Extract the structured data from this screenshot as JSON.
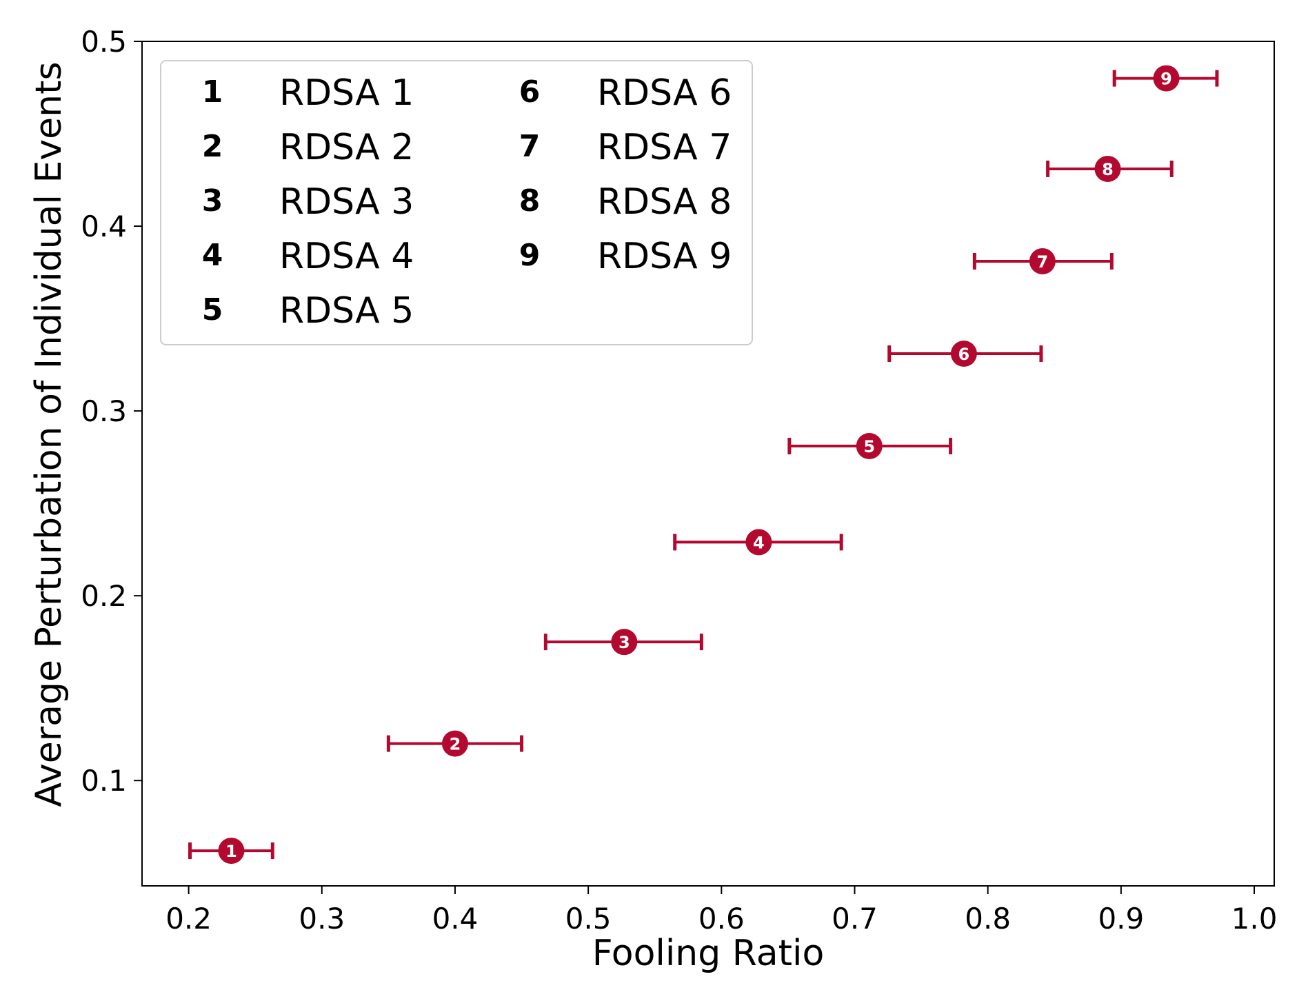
{
  "chart_data": {
    "type": "scatter",
    "title": "",
    "xlabel": "Fooling Ratio",
    "ylabel": "Average Perturbation of Individual Events",
    "xlim": [
      0.165,
      1.015
    ],
    "ylim": [
      0.043,
      0.5
    ],
    "xticks": [
      "0.2",
      "0.3",
      "0.4",
      "0.5",
      "0.6",
      "0.7",
      "0.8",
      "0.9",
      "1.0"
    ],
    "yticks": [
      "0.1",
      "0.2",
      "0.3",
      "0.4",
      "0.5"
    ],
    "grid": false,
    "legend_position": "top-left",
    "color": "#b3092f",
    "points": [
      {
        "id": "1",
        "name": "RDSA 1",
        "x": 0.232,
        "y": 0.062,
        "xerr_low": 0.201,
        "xerr_high": 0.263
      },
      {
        "id": "2",
        "name": "RDSA 2",
        "x": 0.4,
        "y": 0.12,
        "xerr_low": 0.35,
        "xerr_high": 0.45
      },
      {
        "id": "3",
        "name": "RDSA 3",
        "x": 0.527,
        "y": 0.175,
        "xerr_low": 0.468,
        "xerr_high": 0.585
      },
      {
        "id": "4",
        "name": "RDSA 4",
        "x": 0.628,
        "y": 0.229,
        "xerr_low": 0.565,
        "xerr_high": 0.69
      },
      {
        "id": "5",
        "name": "RDSA 5",
        "x": 0.711,
        "y": 0.281,
        "xerr_low": 0.651,
        "xerr_high": 0.772
      },
      {
        "id": "6",
        "name": "RDSA 6",
        "x": 0.782,
        "y": 0.331,
        "xerr_low": 0.726,
        "xerr_high": 0.84
      },
      {
        "id": "7",
        "name": "RDSA 7",
        "x": 0.841,
        "y": 0.381,
        "xerr_low": 0.79,
        "xerr_high": 0.893
      },
      {
        "id": "8",
        "name": "RDSA 8",
        "x": 0.89,
        "y": 0.431,
        "xerr_low": 0.845,
        "xerr_high": 0.938
      },
      {
        "id": "9",
        "name": "RDSA 9",
        "x": 0.934,
        "y": 0.48,
        "xerr_low": 0.895,
        "xerr_high": 0.972
      }
    ]
  }
}
